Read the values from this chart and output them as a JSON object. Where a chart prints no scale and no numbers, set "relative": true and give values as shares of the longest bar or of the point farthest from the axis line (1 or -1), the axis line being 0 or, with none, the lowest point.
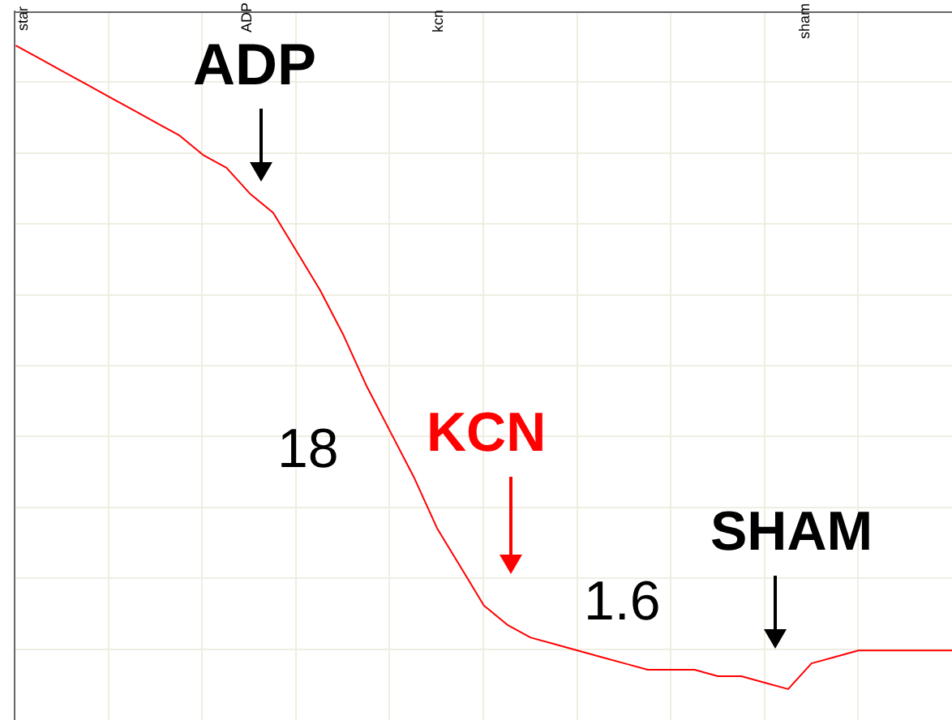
{
  "chart_data": {
    "type": "line",
    "relative": true,
    "grid": true,
    "marker": "none",
    "line_style": "solid",
    "categories": [
      null,
      null,
      null,
      null,
      null,
      null,
      null,
      null,
      null,
      null,
      null,
      null,
      null,
      null,
      null,
      null,
      null,
      null,
      null,
      null,
      null,
      null,
      null,
      null,
      null,
      null,
      null,
      null,
      null,
      null,
      null,
      null,
      null,
      null,
      null,
      null,
      null,
      null,
      null,
      null,
      null
    ],
    "series": [
      {
        "color": "#ff0000",
        "values": [
          1,
          0.98,
          0.96,
          0.94,
          0.92,
          0.9,
          0.88,
          0.86,
          0.83,
          0.81,
          0.77,
          0.74,
          0.68,
          0.62,
          0.55,
          0.47,
          0.4,
          0.33,
          0.25,
          0.19,
          0.13,
          0.1,
          0.08,
          0.07,
          0.06,
          0.05,
          0.04,
          0.03,
          0.03,
          0.03,
          0.02,
          0.02,
          0.01,
          0,
          0.04,
          0.05,
          0.06,
          0.06,
          0.06,
          0.06,
          0.06
        ]
      }
    ],
    "annotations": [
      "star",
      "ADP",
      "kcn",
      "sham",
      "ADP",
      "18",
      "KCN",
      "1.6",
      "SHAM"
    ]
  }
}
